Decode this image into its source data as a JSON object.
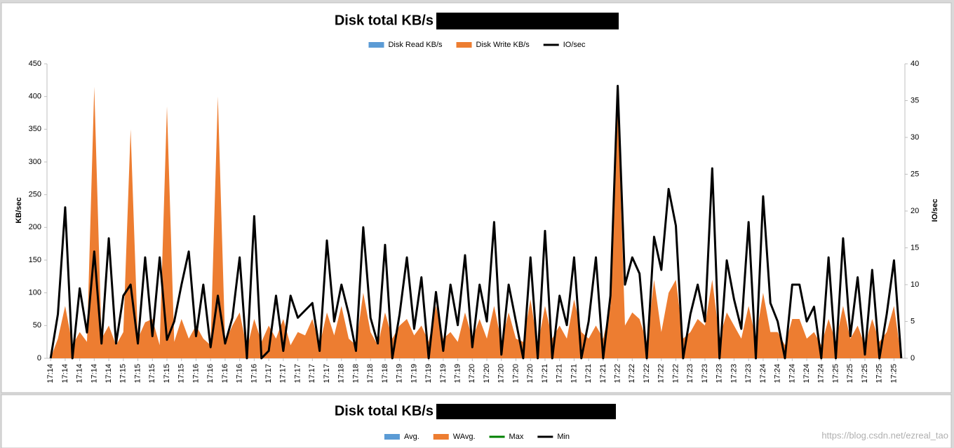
{
  "chart_data": [
    {
      "type": "area",
      "title": "Disk total KB/s",
      "ylabel": "KB/sec",
      "y2label": "IO/sec",
      "categories": [
        "17:14",
        null,
        "17:14",
        null,
        "17:14",
        null,
        "17:14",
        null,
        "17:14",
        null,
        "17:15",
        null,
        "17:15",
        null,
        "17:15",
        null,
        "17:15",
        null,
        "17:15",
        null,
        "17:16",
        null,
        "17:16",
        null,
        "17:16",
        null,
        "17:16",
        null,
        "17:16",
        null,
        "17:17",
        null,
        "17:17",
        null,
        "17:17",
        null,
        "17:17",
        null,
        "17:17",
        null,
        "17:18",
        null,
        "17:18",
        null,
        "17:18",
        null,
        "17:18",
        null,
        "17:19",
        null,
        "17:19",
        null,
        "17:19",
        null,
        "17:19",
        null,
        "17:19",
        null,
        "17:20",
        null,
        "17:20",
        null,
        "17:20",
        null,
        "17:20",
        null,
        "17:20",
        null,
        "17:21",
        null,
        "17:21",
        null,
        "17:21",
        null,
        "17:21",
        null,
        "17:21",
        null,
        "17:22",
        null,
        "17:22",
        null,
        "17:22",
        null,
        "17:22",
        null,
        "17:22",
        null,
        "17:23",
        null,
        "17:23",
        null,
        "17:23",
        null,
        "17:23",
        null,
        "17:23",
        null,
        "17:24",
        null,
        "17:24",
        null,
        "17:24",
        null,
        "17:24",
        null,
        "17:24",
        null,
        "17:25",
        null,
        "17:25",
        null,
        "17:25",
        null,
        "17:25",
        null,
        "17:25",
        null
      ],
      "series": [
        {
          "name": "Disk Read KB/s",
          "color": "#5b9bd5",
          "type": "area",
          "values": [
            0,
            0,
            0,
            0,
            0,
            0,
            0,
            0,
            0,
            0,
            0,
            0,
            0,
            0,
            0,
            0,
            0,
            0,
            0,
            0,
            0,
            0,
            0,
            0,
            0,
            0,
            0,
            0,
            0,
            0,
            0,
            0,
            0,
            0,
            0,
            0,
            0,
            0,
            0,
            0,
            0,
            0,
            0,
            0,
            0,
            0,
            0,
            0,
            0,
            0,
            0,
            0,
            0,
            0,
            0,
            0,
            0,
            0,
            0,
            0,
            0,
            0,
            0,
            0,
            0,
            0,
            0,
            0,
            0,
            0,
            0,
            0,
            0,
            0,
            0,
            0,
            0,
            0,
            0,
            0,
            0,
            0,
            0,
            0,
            0,
            0,
            0,
            0,
            0,
            0,
            0,
            0,
            0,
            0,
            0,
            0,
            0,
            0,
            0,
            0,
            0,
            0,
            0,
            0,
            0,
            0,
            0,
            0,
            0,
            0,
            0,
            0,
            0,
            0,
            0,
            0,
            0,
            0
          ]
        },
        {
          "name": "Disk Write KB/s",
          "color": "#ed7d31",
          "type": "area",
          "values": [
            0,
            30,
            80,
            20,
            40,
            25,
            415,
            30,
            50,
            20,
            40,
            350,
            30,
            55,
            60,
            20,
            385,
            25,
            60,
            30,
            50,
            30,
            20,
            400,
            25,
            50,
            70,
            15,
            60,
            25,
            50,
            30,
            60,
            20,
            40,
            35,
            60,
            20,
            70,
            35,
            80,
            30,
            20,
            100,
            40,
            20,
            70,
            30,
            50,
            60,
            35,
            50,
            25,
            80,
            30,
            40,
            25,
            70,
            30,
            60,
            30,
            80,
            25,
            70,
            30,
            25,
            90,
            20,
            80,
            30,
            50,
            30,
            90,
            40,
            30,
            50,
            30,
            80,
            390,
            50,
            70,
            60,
            25,
            120,
            40,
            100,
            120,
            30,
            40,
            60,
            50,
            120,
            30,
            70,
            50,
            30,
            80,
            30,
            100,
            40,
            40,
            20,
            60,
            60,
            30,
            40,
            20,
            60,
            25,
            80,
            30,
            50,
            20,
            60,
            25,
            40,
            80,
            0
          ]
        },
        {
          "name": "IO/sec",
          "color": "#000000",
          "type": "line",
          "axis": "y2",
          "values": [
            0,
            6,
            20.5,
            0,
            9.5,
            3.5,
            14.5,
            2,
            16.3,
            2,
            8.5,
            10,
            2,
            13.7,
            3,
            13.7,
            2.5,
            5,
            10,
            14.5,
            3,
            10,
            1.5,
            8.5,
            2,
            5.5,
            13.7,
            0,
            19.3,
            0,
            1,
            8.5,
            1,
            8.5,
            5.5,
            6.5,
            7.5,
            1,
            16,
            5,
            10,
            6,
            1,
            17.8,
            5.5,
            2,
            15.4,
            0,
            6,
            13.7,
            4,
            11,
            0,
            9,
            1,
            10,
            4.5,
            14,
            1.5,
            10,
            5,
            18.5,
            0.5,
            10,
            5,
            0,
            13.7,
            0,
            17.3,
            0,
            8.5,
            4.5,
            13.7,
            0,
            5,
            13.7,
            0,
            8.5,
            37,
            10,
            13.7,
            11.5,
            0,
            16.5,
            12,
            23,
            18,
            0,
            6,
            10,
            5,
            25.8,
            0,
            13.3,
            8,
            4,
            18.5,
            0,
            22,
            7.5,
            5,
            0,
            10,
            10,
            5,
            7,
            0,
            13.7,
            0,
            16.3,
            3,
            11,
            0.5,
            12,
            0,
            6,
            13.3,
            0
          ]
        }
      ],
      "ylim": [
        0,
        450
      ],
      "yticks": [
        0,
        50,
        100,
        150,
        200,
        250,
        300,
        350,
        400,
        450
      ],
      "y2lim": [
        0,
        40
      ],
      "y2ticks": [
        0,
        5,
        10,
        15,
        20,
        25,
        30,
        35,
        40
      ]
    },
    {
      "type": "area",
      "title": "Disk total KB/s",
      "series": [
        {
          "name": "Avg.",
          "color": "#5b9bd5",
          "type": "area"
        },
        {
          "name": "WAvg.",
          "color": "#ed7d31",
          "type": "area"
        },
        {
          "name": "Max",
          "color": "#008000",
          "type": "line"
        },
        {
          "name": "Min",
          "color": "#000000",
          "type": "line"
        }
      ]
    }
  ],
  "watermark": "https://blog.csdn.net/ezreal_tao"
}
